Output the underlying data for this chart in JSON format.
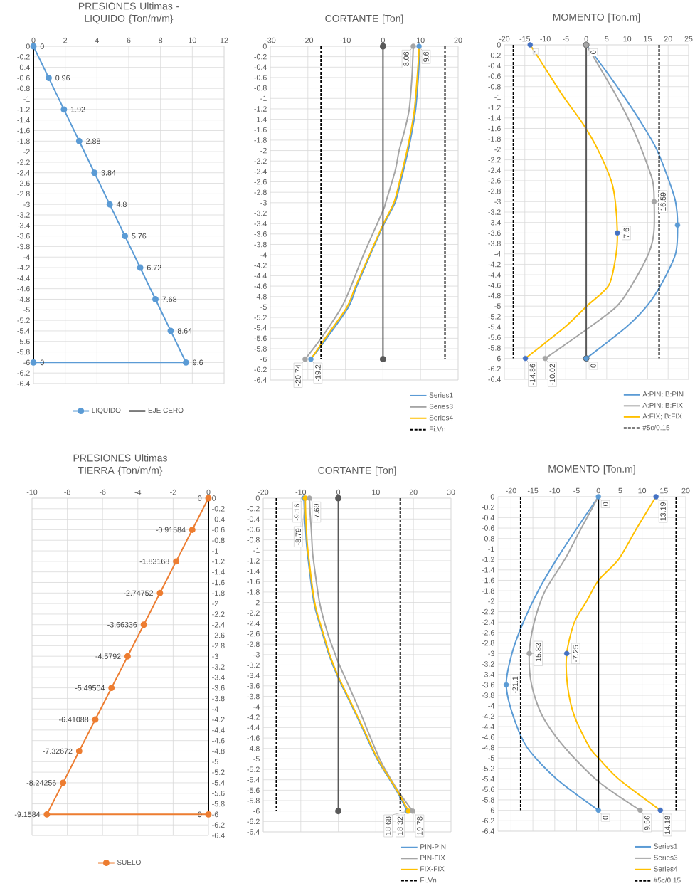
{
  "chart_data": [
    {
      "type": "line",
      "title": "PRESIONES Ultimas -LIQUIDO {Ton/m/m}",
      "xlim": [
        0,
        12
      ],
      "xticks": [
        0,
        2,
        4,
        6,
        8,
        10,
        12
      ],
      "ylim": [
        -6.4,
        0
      ],
      "yticks": [
        0,
        -0.2,
        -0.4,
        -0.6,
        -0.8,
        -1,
        -1.2,
        -1.4,
        -1.6,
        -1.8,
        -2,
        -2.2,
        -2.4,
        -2.6,
        -2.8,
        -3,
        -3.2,
        -3.4,
        -3.6,
        -3.8,
        -4,
        -4.2,
        -4.4,
        -4.6,
        -4.8,
        -5,
        -5.2,
        -5.4,
        -5.6,
        -5.8,
        -6,
        -6.2,
        -6.4
      ],
      "grid": true,
      "legend": "bottom",
      "series": [
        {
          "name": "LIQUIDO",
          "color": "#5b9bd5",
          "marker": "circle",
          "x": [
            0,
            0.96,
            1.92,
            2.88,
            3.84,
            4.8,
            5.76,
            6.72,
            7.68,
            8.64,
            9.6,
            0
          ],
          "values": [
            0,
            -0.6,
            -1.2,
            -1.8,
            -2.4,
            -3,
            -3.6,
            -4.2,
            -4.8,
            -5.4,
            -6,
            -6
          ]
        },
        {
          "name": "EJE CERO",
          "color": "#000000",
          "x": [
            0,
            0
          ],
          "values": [
            0,
            -6
          ]
        }
      ],
      "annotations": [
        {
          "text": "0",
          "x": 0,
          "y": 0
        },
        {
          "text": "0.96",
          "x": 0.96,
          "y": -0.6
        },
        {
          "text": "1.92",
          "x": 1.92,
          "y": -1.2
        },
        {
          "text": "2.88",
          "x": 2.88,
          "y": -1.8
        },
        {
          "text": "3.84",
          "x": 3.84,
          "y": -2.4
        },
        {
          "text": "4.8",
          "x": 4.8,
          "y": -3
        },
        {
          "text": "5.76",
          "x": 5.76,
          "y": -3.6
        },
        {
          "text": "6.72",
          "x": 6.72,
          "y": -4.2
        },
        {
          "text": "7.68",
          "x": 7.68,
          "y": -4.8
        },
        {
          "text": "8.64",
          "x": 8.64,
          "y": -5.4
        },
        {
          "text": "9.6",
          "x": 9.6,
          "y": -6
        },
        {
          "text": "0",
          "x": 0,
          "y": -6
        }
      ]
    },
    {
      "type": "line",
      "title": "CORTANTE [Ton]",
      "xlim": [
        -30,
        20
      ],
      "xticks": [
        -30,
        -20,
        -10,
        0,
        10,
        20
      ],
      "ylim": [
        -6.4,
        0
      ],
      "yticks": [
        0,
        -0.2,
        -0.4,
        -0.6,
        -0.8,
        -1,
        -1.2,
        -1.4,
        -1.6,
        -1.8,
        -2,
        -2.2,
        -2.4,
        -2.6,
        -2.8,
        -3,
        -3.2,
        -3.4,
        -3.6,
        -3.8,
        -4,
        -4.2,
        -4.4,
        -4.6,
        -4.8,
        -5,
        -5.2,
        -5.4,
        -5.6,
        -5.8,
        -6,
        -6.2,
        -6.4
      ],
      "grid": true,
      "legend": "bottom right",
      "series": [
        {
          "name": "Series1",
          "color": "#5b9bd5",
          "x": [
            9.6,
            9.6,
            9.4,
            8.7,
            7.8,
            6.7,
            4.7,
            3.2,
            0,
            -3.4,
            -7,
            -9.2,
            -15,
            -19.2
          ],
          "values": [
            0,
            -0.3,
            -0.6,
            -1.2,
            -1.6,
            -2,
            -2.6,
            -3,
            -3.45,
            -4,
            -4.6,
            -5,
            -5.6,
            -6
          ]
        },
        {
          "name": "Series3",
          "color": "#a5a5a5",
          "x": [
            8.06,
            7.9,
            7.7,
            7.0,
            5.8,
            4.3,
            3.2,
            0.7,
            0,
            -5.2,
            -8.5,
            -11,
            -16.5,
            -20.74
          ],
          "values": [
            0,
            -0.3,
            -0.6,
            -1.2,
            -1.6,
            -2,
            -2.4,
            -3,
            -3.15,
            -4,
            -4.6,
            -5,
            -5.6,
            -6
          ]
        },
        {
          "name": "Series4",
          "color": "#ffc000",
          "x": [
            9.6,
            9.4,
            9.1,
            8.4,
            7.5,
            6.4,
            4.4,
            2.9,
            0,
            -3.6,
            -7.3,
            -9.6,
            -15.4,
            -19.2
          ],
          "values": [
            0,
            -0.3,
            -0.6,
            -1.2,
            -1.6,
            -2,
            -2.6,
            -3,
            -3.42,
            -4,
            -4.6,
            -5,
            -5.6,
            -6
          ]
        },
        {
          "name": "Fi.Vn",
          "color": "#000000",
          "line_style": "dashed",
          "x": [
            -16.5,
            -16.5,
            null,
            16.5,
            16.5
          ],
          "values": [
            0,
            -6,
            null,
            0,
            -6
          ]
        },
        {
          "color": "#595959",
          "marker": "circle",
          "x": [
            0,
            0
          ],
          "values": [
            0,
            -6
          ]
        },
        {
          "type": "scatter",
          "color": "#5b9bd5",
          "marker": "circle",
          "x": [
            9.6,
            -19.2
          ],
          "values": [
            0,
            -6
          ]
        },
        {
          "type": "scatter",
          "color": "#a5a5a5",
          "marker": "circle",
          "x": [
            8.06,
            -20.74
          ],
          "values": [
            0,
            -6
          ]
        }
      ],
      "annotations": [
        {
          "text": "9.6",
          "x": 9.6,
          "y": 0
        },
        {
          "text": "8.06",
          "x": 8.06,
          "y": 0
        },
        {
          "text": "-19.2",
          "x": -19.2,
          "y": -6
        },
        {
          "text": "-20.74",
          "x": -20.74,
          "y": -6
        }
      ]
    },
    {
      "type": "line",
      "title": "MOMENTO [Ton.m]",
      "xlim": [
        -20,
        25
      ],
      "xticks": [
        -20,
        -15,
        -10,
        -5,
        0,
        5,
        10,
        15,
        20,
        25
      ],
      "ylim": [
        -6.4,
        0
      ],
      "yticks": [
        0,
        -0.2,
        -0.4,
        -0.6,
        -0.8,
        -1,
        -1.2,
        -1.4,
        -1.6,
        -1.8,
        -2,
        -2.2,
        -2.4,
        -2.6,
        -2.8,
        -3,
        -3.2,
        -3.4,
        -3.6,
        -3.8,
        -4,
        -4.2,
        -4.4,
        -4.6,
        -4.8,
        -5,
        -5.2,
        -5.4,
        -5.6,
        -5.8,
        -6,
        -6.2,
        -6.4
      ],
      "grid": true,
      "legend": "bottom right",
      "series": [
        {
          "name": "A:PIN; B:PIN",
          "color": "#5b9bd5",
          "x": [
            0,
            4.8,
            9.3,
            13.5,
            17.2,
            20.2,
            21.8,
            22.3,
            21.8,
            18.2,
            14.8,
            9.8,
            0
          ],
          "values": [
            0,
            -0.5,
            -1,
            -1.5,
            -2,
            -2.6,
            -3,
            -3.45,
            -4,
            -4.6,
            -5,
            -5.4,
            -6
          ]
        },
        {
          "name": "A:PIN; B:FIX",
          "color": "#a5a5a5",
          "x": [
            0,
            3.8,
            7.5,
            10.8,
            13.5,
            16.2,
            16.59,
            16.5,
            15.2,
            11.1,
            7.5,
            0,
            -10.02
          ],
          "values": [
            0,
            -0.5,
            -1,
            -1.5,
            -2,
            -2.6,
            -3,
            -3.6,
            -4,
            -4.6,
            -5,
            -5.45,
            -6
          ]
        },
        {
          "name": "A:FIX; B:FIX",
          "color": "#ffc000",
          "x": [
            -13.7,
            -9.6,
            -5.5,
            -0.9,
            2.8,
            6.1,
            7.1,
            7.6,
            7.3,
            5.5,
            0.1,
            -5.2,
            -14.86
          ],
          "values": [
            0,
            -0.5,
            -1,
            -1.5,
            -2,
            -2.6,
            -3,
            -3.6,
            -4,
            -4.6,
            -5,
            -5.4,
            -6
          ]
        },
        {
          "name": "#5c/0.15",
          "color": "#000000",
          "line_style": "dashed",
          "x": [
            -17.8,
            -17.8,
            null,
            17.8,
            17.8
          ],
          "values": [
            0,
            -6,
            null,
            0,
            -6
          ]
        },
        {
          "color": "#595959",
          "marker": "circle",
          "x": [
            0,
            0
          ],
          "values": [
            0,
            -6
          ]
        },
        {
          "type": "scatter",
          "color": "#5b9bd5",
          "marker": "circle",
          "x": [
            22.3,
            0
          ],
          "values": [
            -3.45,
            -6
          ]
        },
        {
          "type": "scatter",
          "color": "#a5a5a5",
          "marker": "circle",
          "x": [
            0,
            16.59,
            -10.02
          ],
          "values": [
            0,
            -3,
            -6
          ]
        },
        {
          "type": "scatter",
          "color": "#4472c4",
          "marker": "circle",
          "x": [
            -13.7,
            7.6,
            -14.86
          ],
          "values": [
            0,
            -3.6,
            -6
          ]
        }
      ],
      "annotations": [
        {
          "text": "0",
          "x": 0,
          "y": 0
        },
        {
          "text": "-",
          "x": -13.7,
          "y": 0
        },
        {
          "text": "16.59",
          "x": 16.59,
          "y": -3
        },
        {
          "text": "7.6",
          "x": 7.6,
          "y": -3.6
        },
        {
          "text": "-14.86",
          "x": -14.86,
          "y": -6
        },
        {
          "text": "-10.02",
          "x": -10.02,
          "y": -6
        },
        {
          "text": "0",
          "x": 0,
          "y": -6
        }
      ]
    },
    {
      "type": "line",
      "title": "PRESIONES Ultimas TIERRA {Ton/m/m}",
      "xlim": [
        -10,
        0
      ],
      "xticks": [
        -10,
        -8,
        -6,
        -4,
        -2,
        0
      ],
      "ylim": [
        -6.4,
        0
      ],
      "yticks": [
        0,
        -0.2,
        -0.4,
        -0.6,
        -0.8,
        -1,
        -1.2,
        -1.4,
        -1.6,
        -1.8,
        -2,
        -2.2,
        -2.4,
        -2.6,
        -2.8,
        -3,
        -3.2,
        -3.4,
        -3.6,
        -3.8,
        -4,
        -4.2,
        -4.4,
        -4.6,
        -4.8,
        -5,
        -5.2,
        -5.4,
        -5.6,
        -5.8,
        -6,
        -6.2,
        -6.4
      ],
      "grid": true,
      "legend": "bottom",
      "series": [
        {
          "name": "SUELO",
          "color": "#ed7d31",
          "marker": "circle",
          "x": [
            0,
            -0.91584,
            -1.83168,
            -2.74752,
            -3.66336,
            -4.5792,
            -5.49504,
            -6.41088,
            -7.32672,
            -8.24256,
            -9.1584,
            0
          ],
          "values": [
            0,
            -0.6,
            -1.2,
            -1.8,
            -2.4,
            -3,
            -3.6,
            -4.2,
            -4.8,
            -5.4,
            -6,
            -6
          ]
        },
        {
          "color": "#000000",
          "x": [
            0,
            0
          ],
          "values": [
            0,
            -6
          ]
        }
      ],
      "annotations": [
        {
          "text": "0",
          "x": 0,
          "y": 0
        },
        {
          "text": "-0.91584",
          "x": -0.91584,
          "y": -0.6
        },
        {
          "text": "-1.83168",
          "x": -1.83168,
          "y": -1.2
        },
        {
          "text": "-2.74752",
          "x": -2.74752,
          "y": -1.8
        },
        {
          "text": "-3.66336",
          "x": -3.66336,
          "y": -2.4
        },
        {
          "text": "-4.5792",
          "x": -4.5792,
          "y": -3
        },
        {
          "text": "-5.49504",
          "x": -5.49504,
          "y": -3.6
        },
        {
          "text": "-6.41088",
          "x": -6.41088,
          "y": -4.2
        },
        {
          "text": "-7.32672",
          "x": -7.32672,
          "y": -4.8
        },
        {
          "text": "-8.24256",
          "x": -8.24256,
          "y": -5.4
        },
        {
          "text": "-9.1584",
          "x": -9.1584,
          "y": -6
        },
        {
          "text": "0",
          "x": 0,
          "y": -6
        }
      ]
    },
    {
      "type": "line",
      "title": "CORTANTE [Ton]",
      "xlim": [
        -20,
        30
      ],
      "xticks": [
        -20,
        -10,
        0,
        10,
        20,
        30
      ],
      "ylim": [
        -6.4,
        0
      ],
      "yticks": [
        0,
        -0.2,
        -0.4,
        -0.6,
        -0.8,
        -1,
        -1.2,
        -1.4,
        -1.6,
        -1.8,
        -2,
        -2.2,
        -2.4,
        -2.6,
        -2.8,
        -3,
        -3.2,
        -3.4,
        -3.6,
        -3.8,
        -4,
        -4.2,
        -4.4,
        -4.6,
        -4.8,
        -5,
        -5.2,
        -5.4,
        -5.6,
        -5.8,
        -6,
        -6.2,
        -6.4
      ],
      "grid": true,
      "legend": "bottom right",
      "series": [
        {
          "name": "PIN-PIN",
          "color": "#5b9bd5",
          "x": [
            -9.16,
            -9.0,
            -8.7,
            -8.3,
            -6.5,
            -4.6,
            -2.5,
            0,
            3.7,
            7.0,
            10.3,
            15.4,
            18.32
          ],
          "values": [
            0,
            -0.3,
            -0.6,
            -1,
            -2,
            -2.5,
            -3,
            -3.45,
            -4,
            -4.5,
            -5,
            -5.6,
            -6
          ]
        },
        {
          "name": "PIN-FIX",
          "color": "#a5a5a5",
          "x": [
            -7.69,
            -7.5,
            -7.2,
            -6.9,
            -6.6,
            -5.0,
            -2.8,
            -0.8,
            0,
            5.2,
            11,
            15.8,
            19.78
          ],
          "values": [
            0,
            -0.3,
            -0.6,
            -1,
            -1.2,
            -2,
            -2.6,
            -3,
            -3.15,
            -4,
            -5,
            -5.6,
            -6
          ]
        },
        {
          "name": "FIX-FIX",
          "color": "#ffc000",
          "x": [
            -8.79,
            -8.7,
            -8.5,
            -8.1,
            -6.3,
            -4.4,
            -2.3,
            0,
            3.9,
            7.2,
            10.5,
            15.6,
            18.68
          ],
          "values": [
            0,
            -0.3,
            -0.6,
            -1,
            -2,
            -2.5,
            -3,
            -3.42,
            -4,
            -4.5,
            -5,
            -5.6,
            -6
          ]
        },
        {
          "name": "Fi.Vn",
          "color": "#000000",
          "line_style": "dashed",
          "x": [
            -16.5,
            -16.5,
            null,
            16.5,
            16.5
          ],
          "values": [
            0,
            -6,
            null,
            0,
            -6
          ]
        },
        {
          "color": "#595959",
          "marker": "circle",
          "x": [
            0,
            0
          ],
          "values": [
            0,
            -6
          ]
        },
        {
          "type": "scatter",
          "color": "#5b9bd5",
          "marker": "circle",
          "x": [
            -9.16,
            18.32
          ],
          "values": [
            0,
            -6
          ]
        },
        {
          "type": "scatter",
          "color": "#ffc000",
          "marker": "circle",
          "x": [
            -8.79,
            18.68
          ],
          "values": [
            0,
            -6
          ]
        },
        {
          "type": "scatter",
          "color": "#a5a5a5",
          "marker": "circle",
          "x": [
            -7.69,
            19.78
          ],
          "values": [
            0,
            -6
          ]
        }
      ],
      "annotations": [
        {
          "text": "-9.16",
          "x": -9.16,
          "y": 0
        },
        {
          "text": "-8.79",
          "x": -8.79,
          "y": 0
        },
        {
          "text": "-7.69",
          "x": -7.69,
          "y": 0
        },
        {
          "text": "18.32",
          "x": 18.32,
          "y": -6
        },
        {
          "text": "18.68",
          "x": 18.68,
          "y": -6
        },
        {
          "text": "19.78",
          "x": 19.78,
          "y": -6
        }
      ]
    },
    {
      "type": "line",
      "title": "MOMENTO [Ton.m]",
      "xlim": [
        -23,
        20
      ],
      "xticks": [
        -20,
        -15,
        -10,
        -5,
        0,
        5,
        10,
        15,
        20
      ],
      "ylim": [
        -6.4,
        0
      ],
      "yticks": [
        0,
        -0.2,
        -0.4,
        -0.6,
        -0.8,
        -1,
        -1.2,
        -1.4,
        -1.6,
        -1.8,
        -2,
        -2.2,
        -2.4,
        -2.6,
        -2.8,
        -3,
        -3.2,
        -3.4,
        -3.6,
        -3.8,
        -4,
        -4.2,
        -4.4,
        -4.6,
        -4.8,
        -5,
        -5.2,
        -5.4,
        -5.6,
        -5.8,
        -6,
        -6.2,
        -6.4
      ],
      "grid": true,
      "legend": "bottom right",
      "series": [
        {
          "name": "Series1",
          "color": "#5b9bd5",
          "x": [
            0,
            -4.9,
            -9.6,
            -13.8,
            -17.2,
            -19.8,
            -21.1,
            -19.5,
            -16.3,
            -9.6,
            0
          ],
          "values": [
            0,
            -0.6,
            -1.2,
            -1.8,
            -2.4,
            -3,
            -3.6,
            -4.2,
            -4.8,
            -5.4,
            -6
          ]
        },
        {
          "name": "Series3",
          "color": "#a5a5a5",
          "x": [
            0,
            -3.9,
            -7.7,
            -12.2,
            -14.7,
            -15.83,
            -15.3,
            -12.8,
            -7.7,
            0,
            9.56
          ],
          "values": [
            0,
            -0.6,
            -1.2,
            -1.8,
            -2.4,
            -3,
            -3.6,
            -4.2,
            -4.8,
            -5.45,
            -6
          ]
        },
        {
          "name": "Series4",
          "color": "#ffc000",
          "x": [
            13.19,
            8.8,
            4.6,
            0,
            -2.7,
            -5.5,
            -7.25,
            -7.1,
            -5.5,
            -2.0,
            0,
            4.6,
            14.18
          ],
          "values": [
            0,
            -0.6,
            -1.2,
            -1.6,
            -2,
            -2.4,
            -3,
            -3.6,
            -4.2,
            -4.8,
            -5,
            -5.4,
            -6
          ]
        },
        {
          "name": "#5c/0.15",
          "color": "#000000",
          "line_style": "dashed",
          "x": [
            -17.8,
            -17.8,
            null,
            17.8,
            17.8
          ],
          "values": [
            0,
            -6,
            null,
            0,
            -6
          ]
        },
        {
          "color": "#000000",
          "x": [
            0,
            0
          ],
          "values": [
            0,
            -6
          ]
        },
        {
          "type": "scatter",
          "color": "#5b9bd5",
          "marker": "circle",
          "x": [
            0,
            -21.1,
            0
          ],
          "values": [
            0,
            -3.6,
            -6
          ]
        },
        {
          "type": "scatter",
          "color": "#a5a5a5",
          "marker": "circle",
          "x": [
            -15.83,
            9.56
          ],
          "values": [
            -3,
            -6
          ]
        },
        {
          "type": "scatter",
          "color": "#4472c4",
          "marker": "circle",
          "x": [
            13.19,
            -7.25,
            14.18
          ],
          "values": [
            0,
            -3,
            -6
          ]
        }
      ],
      "annotations": [
        {
          "text": "0",
          "x": 0,
          "y": 0
        },
        {
          "text": "13.19",
          "x": 13.19,
          "y": 0
        },
        {
          "text": "-15.83",
          "x": -15.83,
          "y": -3
        },
        {
          "text": "-7.25",
          "x": -7.25,
          "y": -3
        },
        {
          "text": "-21.1",
          "x": -21.1,
          "y": -3.6
        },
        {
          "text": "0",
          "x": 0,
          "y": -6
        },
        {
          "text": "9.56",
          "x": 9.56,
          "y": -6
        },
        {
          "text": "14.18",
          "x": 14.18,
          "y": -6
        }
      ]
    }
  ]
}
